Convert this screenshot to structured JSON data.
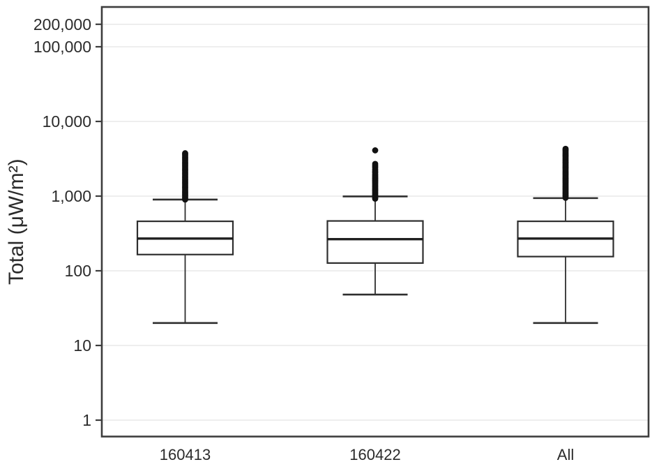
{
  "chart_data": {
    "type": "boxplot",
    "title": "",
    "xlabel": "",
    "ylabel": "Total (μW/m²)",
    "yscale": "log",
    "ylim": [
      0.6,
      350000
    ],
    "grid": true,
    "grid_color": "#e9e9e9",
    "frame_color": "#3d3d3d",
    "box_color": "#2e2e2e",
    "outlier_color": "#111111",
    "yticks": [
      {
        "label": "200,000",
        "value": 200000
      },
      {
        "label": "100,000",
        "value": 100000
      },
      {
        "label": "10,000",
        "value": 10000
      },
      {
        "label": "1,000",
        "value": 1000
      },
      {
        "label": "100",
        "value": 100
      },
      {
        "label": "10",
        "value": 10
      },
      {
        "label": "1",
        "value": 1
      }
    ],
    "categories": [
      "160413",
      "160422",
      "All"
    ],
    "boxes": [
      {
        "category": "160413",
        "whisker_low": 20,
        "q1": 165,
        "median": 270,
        "q3": 460,
        "whisker_high": 900,
        "outliers": [
          900,
          935,
          970,
          1010,
          1050,
          1090,
          1135,
          1180,
          1230,
          1280,
          1330,
          1385,
          1440,
          1500,
          1560,
          1625,
          1690,
          1760,
          1830,
          1905,
          1985,
          2065,
          2150,
          2240,
          2330,
          2430,
          2530,
          2630,
          2740,
          2850,
          2970,
          3090,
          3220,
          3350,
          3490,
          3630,
          3750
        ]
      },
      {
        "category": "160422",
        "whisker_low": 48,
        "q1": 127,
        "median": 265,
        "q3": 465,
        "whisker_high": 990,
        "outliers": [
          925,
          960,
          1000,
          1040,
          1085,
          1130,
          1175,
          1225,
          1275,
          1330,
          1385,
          1445,
          1505,
          1570,
          1635,
          1705,
          1775,
          1850,
          1930,
          2050,
          2150,
          2280,
          2420,
          2560,
          2700,
          4100
        ]
      },
      {
        "category": "All",
        "whisker_low": 20,
        "q1": 155,
        "median": 270,
        "q3": 460,
        "whisker_high": 940,
        "outliers": [
          950,
          990,
          1030,
          1075,
          1120,
          1165,
          1215,
          1265,
          1320,
          1375,
          1430,
          1490,
          1555,
          1620,
          1685,
          1755,
          1830,
          1905,
          1985,
          2070,
          2155,
          2245,
          2340,
          2435,
          2535,
          2640,
          2750,
          2865,
          2985,
          3110,
          3240,
          3375,
          3515,
          3660,
          3810,
          3970,
          4135,
          4300
        ]
      }
    ]
  }
}
